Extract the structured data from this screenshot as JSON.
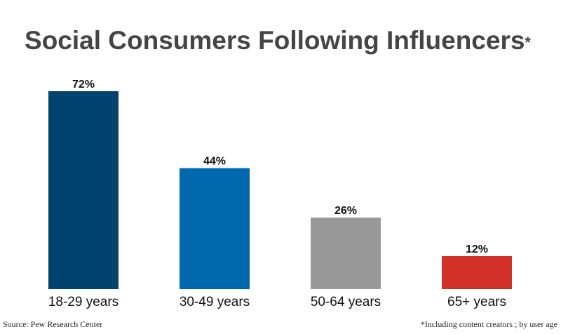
{
  "chart_data": {
    "type": "bar",
    "title": "Social Consumers Following Influencers",
    "title_mark": "*",
    "categories": [
      "18-29 years",
      "30-49 years",
      "50-64 years",
      "65+ years"
    ],
    "values": [
      72,
      44,
      26,
      12
    ],
    "data_labels": [
      "72%",
      "44%",
      "26%",
      "12%"
    ],
    "colors": [
      "#00436e",
      "#0068ad",
      "#999999",
      "#d3322b"
    ],
    "xlabel": "",
    "ylabel": "",
    "ylim": [
      0,
      72
    ],
    "grid": false,
    "legend": "none"
  },
  "source": "Source: Pew Research Center",
  "footnote": "*Including content creators ; by user age"
}
